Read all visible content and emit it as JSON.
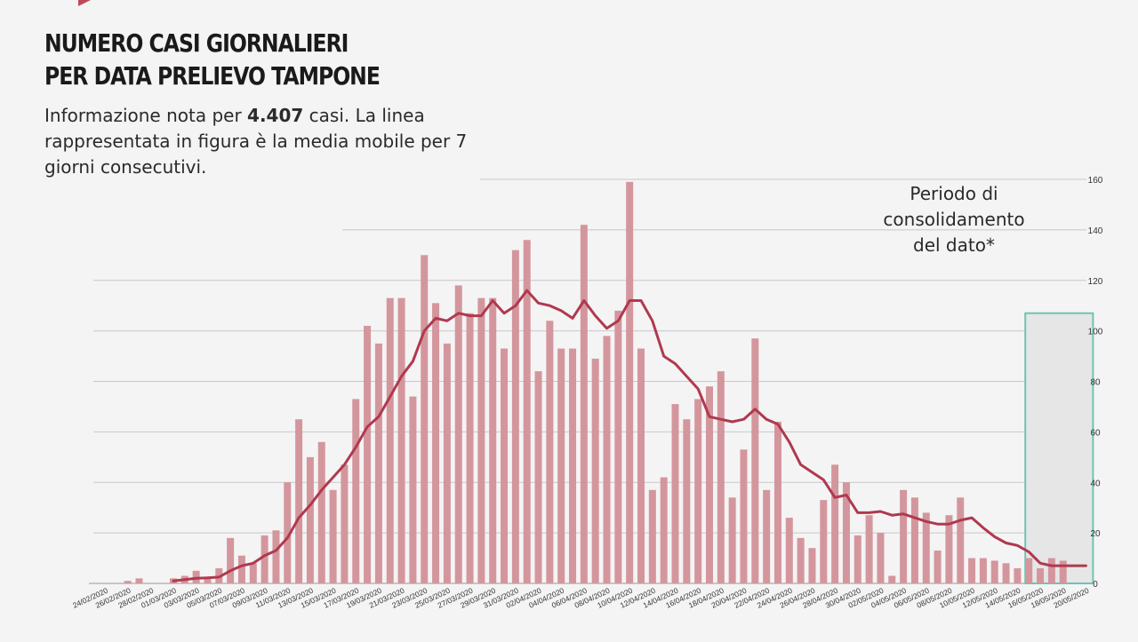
{
  "header": {
    "title_line1": "NUMERO CASI GIORNALIERI",
    "title_line2": "PER DATA PRELIEVO TAMPONE",
    "subtitle_pre": "Informazione nota per ",
    "subtitle_bold": "4.407",
    "subtitle_post": "  casi. La linea rappresentata in figura è la media mobile per 7 giorni consecutivi."
  },
  "annotation": {
    "line1": "Periodo di",
    "line2": "consolidamento",
    "line3": "del dato*"
  },
  "colors": {
    "bar": "#d4969d",
    "line": "#b0394f",
    "grid": "#c8c8c8",
    "highlight_border": "#6ec4b4",
    "highlight_fill": "#e6e6e6",
    "accent": "#c0485a"
  },
  "chart_data": {
    "type": "bar",
    "title": "NUMERO CASI GIORNALIERI PER DATA PRELIEVO TAMPONE",
    "xlabel": "",
    "ylabel": "",
    "ylim": [
      0,
      160
    ],
    "yticks": [
      0,
      20,
      40,
      60,
      80,
      100,
      120,
      140,
      160
    ],
    "grid": true,
    "y_axis_side": "right",
    "start_date": "24/02/2020",
    "tick_labels": [
      "24/02/2020",
      "26/02/2020",
      "28/02/2020",
      "01/03/2020",
      "03/03/2020",
      "05/03/2020",
      "07/03/2020",
      "09/03/2020",
      "11/03/2020",
      "13/03/2020",
      "15/03/2020",
      "17/03/2020",
      "19/03/2020",
      "21/03/2020",
      "23/03/2020",
      "25/03/2020",
      "27/03/2020",
      "29/03/2020",
      "31/03/2020",
      "02/04/2020",
      "04/04/2020",
      "06/04/2020",
      "08/04/2020",
      "10/04/2020",
      "12/04/2020",
      "14/04/2020",
      "16/04/2020",
      "18/04/2020",
      "20/04/2020",
      "22/04/2020",
      "24/04/2020",
      "26/04/2020",
      "28/04/2020",
      "30/04/2020",
      "02/05/2020",
      "04/05/2020",
      "06/05/2020",
      "08/05/2020",
      "10/05/2020",
      "12/05/2020",
      "14/05/2020",
      "16/05/2020",
      "18/05/2020",
      "20/05/2020"
    ],
    "series": [
      {
        "name": "Casi giornalieri",
        "type": "bar",
        "values": [
          0,
          0,
          1,
          2,
          0,
          0,
          2,
          3,
          5,
          2,
          6,
          18,
          11,
          8,
          19,
          21,
          40,
          65,
          50,
          56,
          37,
          47,
          73,
          102,
          95,
          113,
          113,
          74,
          130,
          111,
          95,
          118,
          107,
          113,
          113,
          93,
          132,
          136,
          84,
          104,
          93,
          93,
          142,
          89,
          98,
          108,
          159,
          93,
          37,
          42,
          71,
          65,
          73,
          78,
          84,
          34,
          53,
          97,
          37,
          64,
          26,
          18,
          14,
          33,
          47,
          40,
          19,
          27,
          20,
          3,
          37,
          34,
          28,
          13,
          27,
          34,
          10,
          10,
          9,
          8,
          6,
          10,
          6,
          10,
          9
        ]
      },
      {
        "name": "Media mobile 7 giorni",
        "type": "line",
        "start_index": 6,
        "values": [
          1,
          1.5,
          2,
          2.2,
          2.5,
          5,
          7,
          8,
          11,
          13,
          18,
          26,
          31,
          37,
          42,
          47,
          54,
          62,
          66,
          74,
          82,
          88,
          100,
          105,
          104,
          107,
          106,
          106,
          112,
          107,
          110,
          116,
          111,
          110,
          108,
          105,
          112,
          106,
          101,
          104,
          112,
          112,
          104,
          90,
          87,
          82,
          77,
          66,
          65,
          64,
          65,
          69,
          65,
          63,
          56,
          47,
          44,
          41,
          34,
          35,
          28,
          28,
          28.5,
          27,
          27.5,
          26,
          24.5,
          23.5,
          23.5,
          25,
          26,
          22,
          18.5,
          16,
          15,
          12.5,
          8,
          7,
          7,
          7,
          7
        ]
      }
    ],
    "highlight": {
      "label": "Periodo di consolidamento del dato*",
      "from_index": 81,
      "to_index": 86,
      "ymax": 107
    }
  }
}
